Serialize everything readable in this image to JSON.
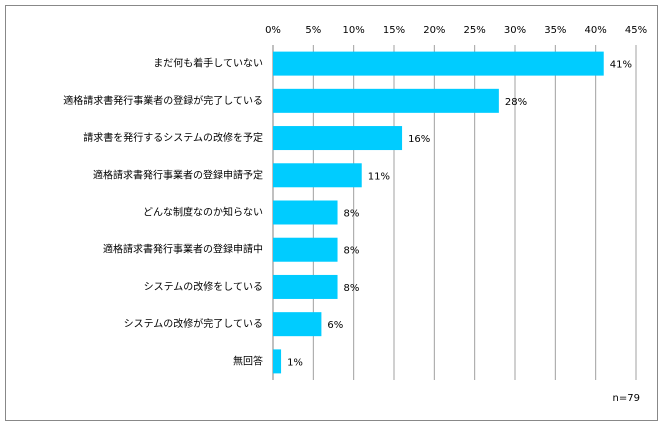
{
  "chart_data": {
    "type": "bar",
    "orientation": "horizontal",
    "categories": [
      "まだ何も着手していない",
      "適格請求書発行事業者の登録が完了している",
      "請求書を発行するシステムの改修を予定",
      "適格請求書発行事業者の登録申請予定",
      "どんな制度なのか知らない",
      "適格請求書発行事業者の登録申請中",
      "システムの改修をしている",
      "システムの改修が完了している",
      "無回答"
    ],
    "values": [
      41,
      28,
      16,
      11,
      8,
      8,
      8,
      6,
      1
    ],
    "value_labels": [
      "41%",
      "28%",
      "16%",
      "11%",
      "8%",
      "8%",
      "8%",
      "6%",
      "1%"
    ],
    "color": "#00ccff",
    "xlim": [
      0,
      45
    ],
    "xticks": [
      {
        "value": 0,
        "label": "0%"
      },
      {
        "value": 5,
        "label": "5%"
      },
      {
        "value": 10,
        "label": "10%"
      },
      {
        "value": 15,
        "label": "15%"
      },
      {
        "value": 20,
        "label": "20%"
      },
      {
        "value": 25,
        "label": "25%"
      },
      {
        "value": 30,
        "label": "30%"
      },
      {
        "value": 35,
        "label": "35%"
      },
      {
        "value": 40,
        "label": "40%"
      },
      {
        "value": 45,
        "label": "45%"
      }
    ],
    "grid": true,
    "note": "n=79"
  }
}
